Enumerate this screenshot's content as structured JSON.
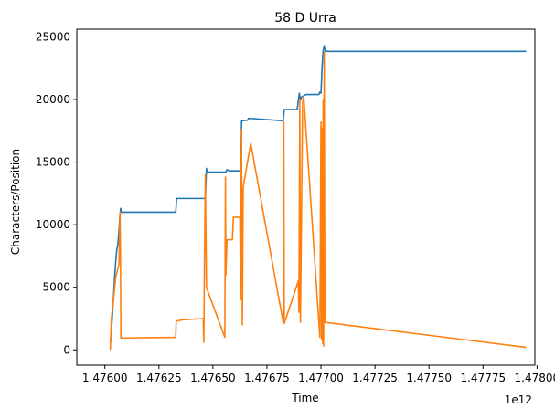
{
  "chart_data": {
    "type": "line",
    "title": "58 D Urra",
    "xlabel": "Time",
    "ylabel": "Characters/Position",
    "x_offset_label": "1e12",
    "x_scale": 1000000000000.0,
    "xlim": [
      1.47587,
      1.47799
    ],
    "ylim": [
      -1220,
      25620
    ],
    "x_ticks": [
      1.476,
      1.47625,
      1.4765,
      1.47675,
      1.477,
      1.47725,
      1.4775,
      1.47775,
      1.478
    ],
    "x_tick_labels": [
      "1.47600",
      "1.47625",
      "1.47650",
      "1.47675",
      "1.47700",
      "1.47725",
      "1.47750",
      "1.47775",
      "1.47800"
    ],
    "y_ticks": [
      0,
      5000,
      10000,
      15000,
      20000,
      25000
    ],
    "y_tick_labels": [
      "0",
      "5000",
      "10000",
      "15000",
      "20000",
      "25000"
    ],
    "grid": false,
    "series": [
      {
        "color": "#1f77b4",
        "points": [
          [
            1.476025,
            500
          ],
          [
            1.47603,
            1500
          ],
          [
            1.476035,
            2800
          ],
          [
            1.47604,
            4200
          ],
          [
            1.476045,
            5800
          ],
          [
            1.47605,
            7000
          ],
          [
            1.476055,
            8000
          ],
          [
            1.47606,
            8400
          ],
          [
            1.476065,
            9500
          ],
          [
            1.47607,
            10800
          ],
          [
            1.476073,
            11300
          ],
          [
            1.476075,
            11000
          ],
          [
            1.476328,
            11000
          ],
          [
            1.476332,
            12100
          ],
          [
            1.476465,
            12100
          ],
          [
            1.47647,
            14500
          ],
          [
            1.476473,
            14200
          ],
          [
            1.47656,
            14200
          ],
          [
            1.476565,
            14400
          ],
          [
            1.476575,
            14300
          ],
          [
            1.476628,
            14300
          ],
          [
            1.476633,
            18300
          ],
          [
            1.47666,
            18350
          ],
          [
            1.476665,
            18500
          ],
          [
            1.476825,
            18300
          ],
          [
            1.47683,
            19200
          ],
          [
            1.47689,
            19200
          ],
          [
            1.476895,
            19900
          ],
          [
            1.4769,
            20500
          ],
          [
            1.476905,
            20000
          ],
          [
            1.47691,
            20200
          ],
          [
            1.47693,
            20400
          ],
          [
            1.47699,
            20400
          ],
          [
            1.476995,
            20600
          ],
          [
            1.477,
            20500
          ],
          [
            1.477005,
            22500
          ],
          [
            1.47701,
            23900
          ],
          [
            1.477015,
            24300
          ],
          [
            1.47702,
            23850
          ],
          [
            1.47795,
            23850
          ]
        ]
      },
      {
        "color": "#ff7f0e",
        "points": [
          [
            1.476025,
            0
          ],
          [
            1.47603,
            2500
          ],
          [
            1.47604,
            4000
          ],
          [
            1.47605,
            5800
          ],
          [
            1.47606,
            6500
          ],
          [
            1.476065,
            6800
          ],
          [
            1.47607,
            11000
          ],
          [
            1.476072,
            8000
          ],
          [
            1.476074,
            950
          ],
          [
            1.476328,
            1000
          ],
          [
            1.47633,
            2300
          ],
          [
            1.47636,
            2400
          ],
          [
            1.476455,
            2500
          ],
          [
            1.476458,
            600
          ],
          [
            1.47646,
            5500
          ],
          [
            1.476465,
            14000
          ],
          [
            1.47647,
            5000
          ],
          [
            1.476555,
            1000
          ],
          [
            1.476558,
            13800
          ],
          [
            1.47656,
            6000
          ],
          [
            1.476565,
            8800
          ],
          [
            1.47659,
            8800
          ],
          [
            1.476595,
            10600
          ],
          [
            1.476625,
            10600
          ],
          [
            1.476628,
            4000
          ],
          [
            1.476632,
            17600
          ],
          [
            1.476636,
            2000
          ],
          [
            1.47664,
            13000
          ],
          [
            1.476675,
            16500
          ],
          [
            1.476825,
            2200
          ],
          [
            1.476828,
            18200
          ],
          [
            1.47683,
            2100
          ],
          [
            1.476895,
            5500
          ],
          [
            1.476898,
            3000
          ],
          [
            1.476902,
            20000
          ],
          [
            1.476905,
            2200
          ],
          [
            1.476915,
            19800
          ],
          [
            1.47692,
            20300
          ],
          [
            1.476995,
            1000
          ],
          [
            1.477,
            18200
          ],
          [
            1.477003,
            800
          ],
          [
            1.477006,
            17700
          ],
          [
            1.477008,
            500
          ],
          [
            1.47701,
            20000
          ],
          [
            1.477012,
            300
          ],
          [
            1.477015,
            23800
          ],
          [
            1.477018,
            2200
          ],
          [
            1.47795,
            200
          ]
        ]
      }
    ]
  }
}
